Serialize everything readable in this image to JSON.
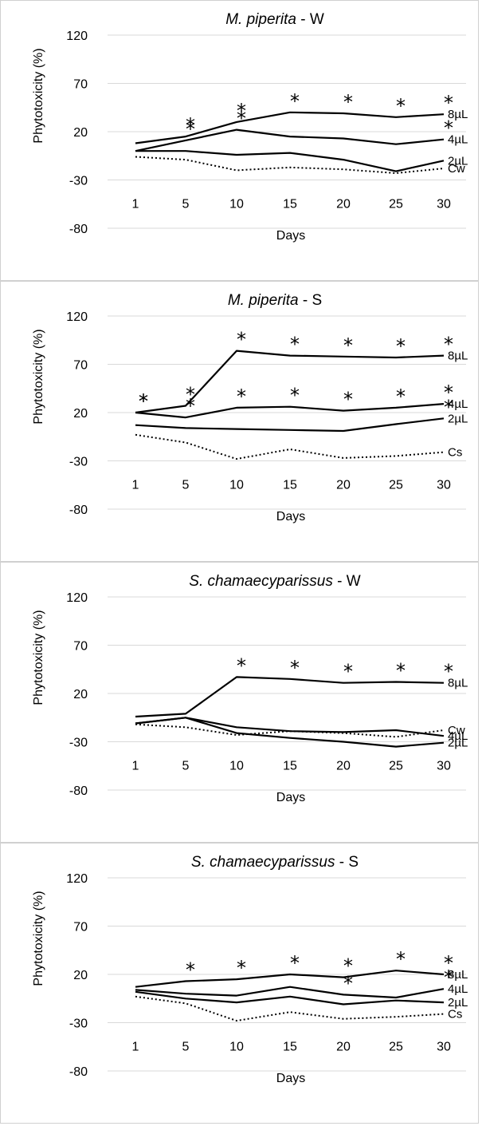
{
  "chart_data": [
    {
      "type": "line",
      "title_italic": "M. piperita",
      "title_rest": " - W",
      "ylabel": "Phytotoxicity (%)",
      "xlabel": "Days",
      "x": [
        1,
        5,
        10,
        15,
        20,
        25,
        30
      ],
      "yticks": [
        120,
        70,
        20,
        -30,
        -80
      ],
      "ylim": [
        -80,
        120
      ],
      "grid": true,
      "series": [
        {
          "name": "8µL",
          "style": "solid",
          "values": [
            8,
            15,
            30,
            40,
            39,
            35,
            38
          ],
          "stars": [
            false,
            true,
            true,
            true,
            true,
            true,
            true
          ]
        },
        {
          "name": "4µL",
          "style": "solid",
          "values": [
            0,
            11,
            22,
            15,
            13,
            7,
            12
          ],
          "stars": [
            false,
            true,
            true,
            false,
            false,
            false,
            true
          ]
        },
        {
          "name": "2µL",
          "style": "solid",
          "values": [
            0,
            0,
            -4,
            -2,
            -9,
            -21,
            -10
          ],
          "stars": [
            false,
            false,
            false,
            false,
            false,
            false,
            false
          ]
        },
        {
          "name": "Cw",
          "style": "dotted",
          "values": [
            -6,
            -9,
            -20,
            -17,
            -19,
            -23,
            -18
          ],
          "stars": [
            false,
            false,
            false,
            false,
            false,
            false,
            false
          ]
        }
      ]
    },
    {
      "type": "line",
      "title_italic": "M. piperita",
      "title_rest": " - S",
      "ylabel": "Phytotoxicity (%)",
      "xlabel": "Days",
      "x": [
        1,
        5,
        10,
        15,
        20,
        25,
        30
      ],
      "yticks": [
        120,
        70,
        20,
        -30,
        -80
      ],
      "ylim": [
        -80,
        120
      ],
      "grid": true,
      "series": [
        {
          "name": "8µL",
          "style": "solid",
          "values": [
            20,
            27,
            84,
            79,
            78,
            77,
            79
          ],
          "stars": [
            true,
            true,
            true,
            true,
            true,
            true,
            true
          ]
        },
        {
          "name": "4µL",
          "style": "solid",
          "values": [
            20,
            15,
            25,
            26,
            22,
            25,
            29
          ],
          "stars": [
            true,
            true,
            true,
            true,
            true,
            true,
            true
          ]
        },
        {
          "name": "2µL",
          "style": "solid",
          "values": [
            7,
            4,
            3,
            2,
            1,
            8,
            14
          ],
          "stars": [
            false,
            false,
            false,
            false,
            false,
            false,
            true
          ]
        },
        {
          "name": "Cs",
          "style": "dotted",
          "values": [
            -3,
            -11,
            -28,
            -18,
            -27,
            -25,
            -21
          ],
          "stars": [
            false,
            false,
            false,
            false,
            false,
            false,
            false
          ]
        }
      ]
    },
    {
      "type": "line",
      "title_italic": "S. chamaecyparissus",
      "title_rest": " - W",
      "ylabel": "Phytotoxicity (%)",
      "xlabel": "Days",
      "x": [
        1,
        5,
        10,
        15,
        20,
        25,
        30
      ],
      "yticks": [
        120,
        70,
        20,
        -30,
        -80
      ],
      "ylim": [
        -80,
        120
      ],
      "grid": true,
      "series": [
        {
          "name": "8µL",
          "style": "solid",
          "values": [
            -4,
            -1,
            37,
            35,
            31,
            32,
            31
          ],
          "stars": [
            false,
            false,
            true,
            true,
            true,
            true,
            true
          ]
        },
        {
          "name": "Cw",
          "style": "dotted",
          "values": [
            -12,
            -15,
            -23,
            -19,
            -21,
            -25,
            -18
          ],
          "stars": [
            false,
            false,
            false,
            false,
            false,
            false,
            false
          ]
        },
        {
          "name": "4µL",
          "style": "solid",
          "values": [
            -11,
            -5,
            -15,
            -19,
            -20,
            -18,
            -24
          ],
          "stars": [
            false,
            false,
            false,
            false,
            false,
            false,
            false
          ]
        },
        {
          "name": "2µL",
          "style": "solid",
          "values": [
            -11,
            -5,
            -21,
            -26,
            -30,
            -35,
            -31
          ],
          "stars": [
            false,
            false,
            false,
            false,
            false,
            false,
            false
          ]
        }
      ]
    },
    {
      "type": "line",
      "title_italic": "S. chamaecyparissus",
      "title_rest": " - S",
      "ylabel": "Phytotoxicity (%)",
      "xlabel": "Days",
      "x": [
        1,
        5,
        10,
        15,
        20,
        25,
        30
      ],
      "yticks": [
        120,
        70,
        20,
        -30,
        -80
      ],
      "ylim": [
        -80,
        120
      ],
      "grid": true,
      "series": [
        {
          "name": "8µL",
          "style": "solid",
          "values": [
            7,
            13,
            15,
            20,
            17,
            24,
            20
          ],
          "stars": [
            false,
            true,
            true,
            true,
            true,
            true,
            true
          ]
        },
        {
          "name": "4µL",
          "style": "solid",
          "values": [
            4,
            0,
            -2,
            7,
            -1,
            -4,
            5
          ],
          "stars": [
            false,
            false,
            false,
            false,
            true,
            false,
            true
          ]
        },
        {
          "name": "2µL",
          "style": "solid",
          "values": [
            2,
            -5,
            -9,
            -3,
            -11,
            -7,
            -9
          ],
          "stars": [
            false,
            false,
            false,
            false,
            false,
            false,
            false
          ]
        },
        {
          "name": "Cs",
          "style": "dotted",
          "values": [
            -3,
            -10,
            -28,
            -19,
            -26,
            -24,
            -21
          ],
          "stars": [
            false,
            false,
            false,
            false,
            false,
            false,
            false
          ]
        }
      ]
    }
  ]
}
